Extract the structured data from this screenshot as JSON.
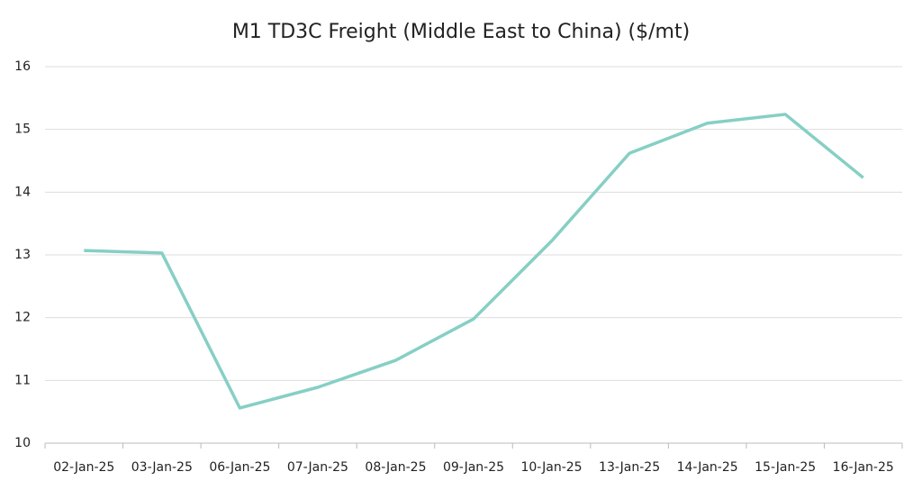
{
  "chart_data": {
    "type": "line",
    "title": "M1 TD3C Freight (Middle East to China) ($/mt)",
    "categories": [
      "02-Jan-25",
      "03-Jan-25",
      "06-Jan-25",
      "07-Jan-25",
      "08-Jan-25",
      "09-Jan-25",
      "10-Jan-25",
      "13-Jan-25",
      "14-Jan-25",
      "15-Jan-25",
      "16-Jan-25"
    ],
    "series": [
      {
        "name": "M1 TD3C Freight",
        "color": "#86cfc5",
        "values": [
          13.07,
          13.03,
          10.56,
          10.89,
          11.32,
          11.98,
          13.22,
          14.62,
          15.1,
          15.24,
          14.23
        ]
      }
    ],
    "ylim": [
      10,
      16
    ],
    "yticks": [
      10,
      11,
      12,
      13,
      14,
      15,
      16
    ],
    "grid": true
  }
}
